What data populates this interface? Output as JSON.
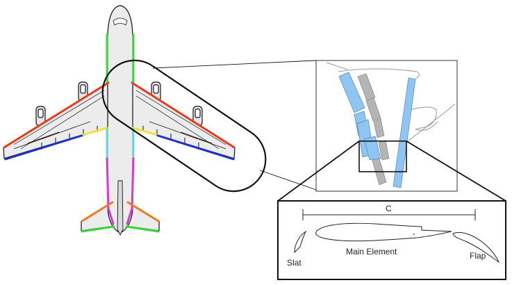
{
  "labels": {
    "chord": "C",
    "main_element": "Main Element",
    "slat": "Slat",
    "flap": "Flap"
  },
  "colors": {
    "airframe_fill": "#ececec",
    "outline": "#111111",
    "leading_edge": "#e8391b",
    "trailing_edge_outer": "#2030c8",
    "trailing_edge_inner": "#f2e23a",
    "fuselage_front": "#39d939",
    "fuselage_mid": "#63d9e8",
    "fuselage_rear": "#d13bd1",
    "tail_leading_edge": "#ef7a1e",
    "tail_trailing_edge": "#39d939",
    "flap_blue": "#8ec5f2",
    "flap_gray": "#b5b5b5"
  }
}
